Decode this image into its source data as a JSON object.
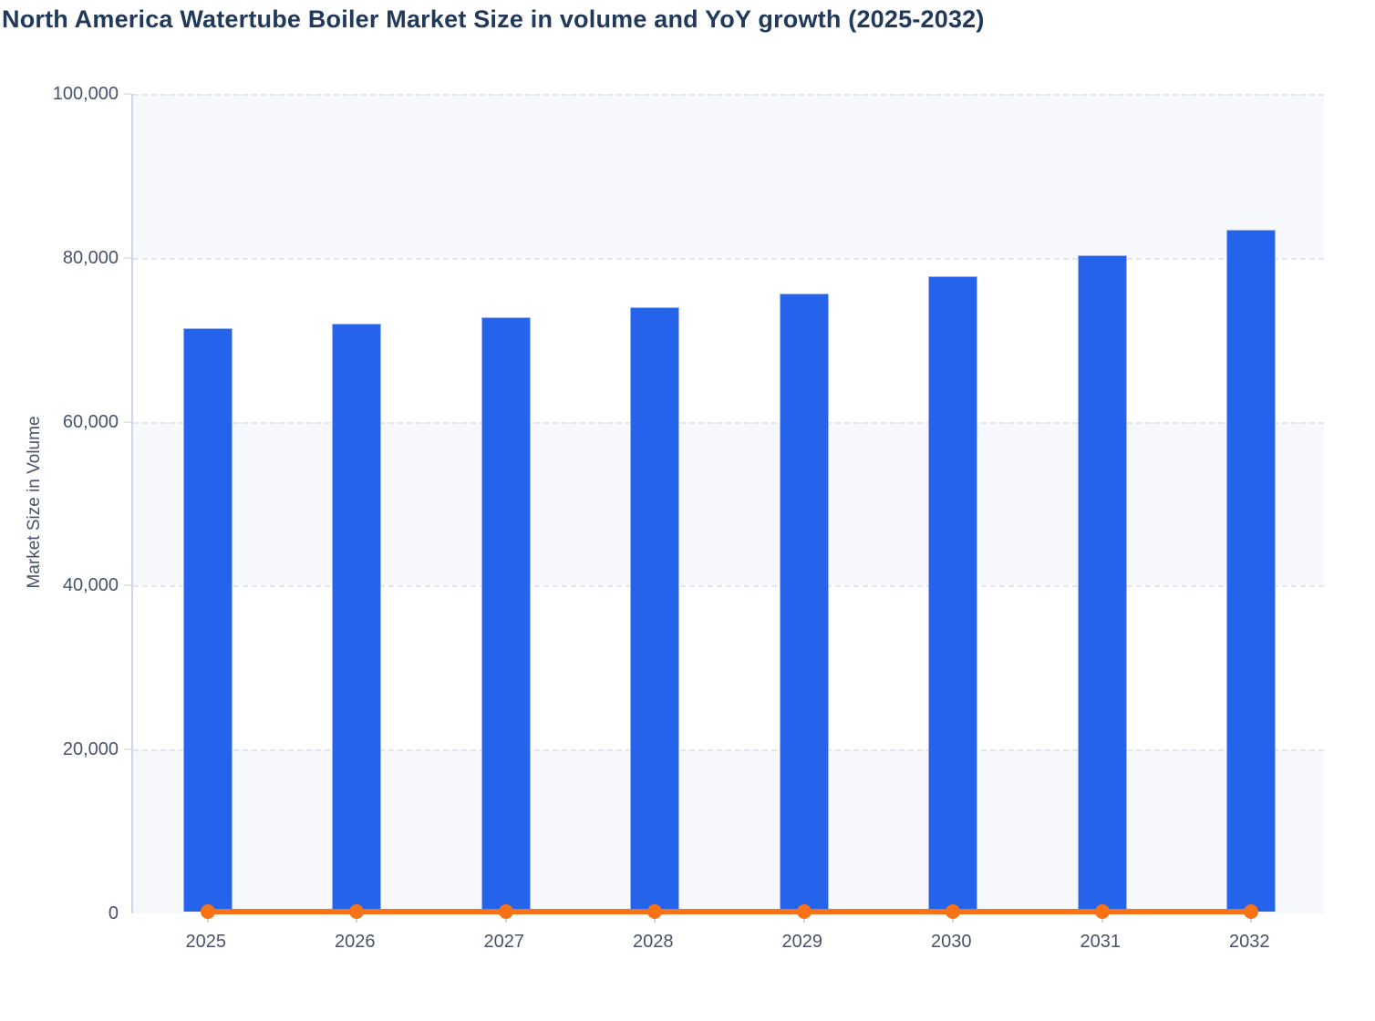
{
  "title": "North America Watertube Boiler Market Size in volume and YoY growth (2025-2032)",
  "chart_data": {
    "type": "combo",
    "title": "North America Watertube Boiler Market Size in volume and YoY growth (2025-2032)",
    "xlabel": "",
    "ylabel": "Market Size in Volume",
    "categories": [
      "2025",
      "2026",
      "2027",
      "2028",
      "2029",
      "2030",
      "2031",
      "2032"
    ],
    "series": [
      {
        "name": "Market Size in Volume",
        "type": "bar",
        "color": "#2563eb",
        "values": [
          71200,
          71700,
          72500,
          73800,
          75400,
          77500,
          80100,
          83200
        ]
      },
      {
        "name": "YoY growth",
        "type": "line",
        "color": "#f97316",
        "values": [
          0,
          0,
          0,
          0,
          0,
          0,
          0,
          0
        ]
      }
    ],
    "ylim": [
      0,
      100000
    ],
    "y_ticks": [
      "0",
      "20,000",
      "40,000",
      "60,000",
      "80,000",
      "100,000"
    ],
    "grid": "horizontal-dashed",
    "plot_bands": "alternating-shaded-from-top",
    "legend_position": "none"
  },
  "colors": {
    "bar_fill": "#2563eb",
    "bar_stroke": "#9db7f3",
    "line": "#f97316",
    "band_shaded": "#f6f8fb",
    "gridline": "#e2e6ee",
    "axis": "#ccd5e8",
    "text": "#47536b",
    "title_text": "#213a5c"
  }
}
